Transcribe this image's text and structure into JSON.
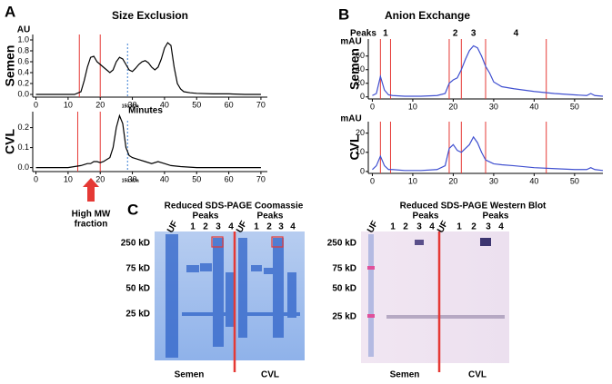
{
  "figure": {
    "panel_labels": [
      "A",
      "B",
      "C"
    ],
    "arrow_label": [
      "High MW",
      "fraction"
    ]
  },
  "chart_data": [
    {
      "type": "line",
      "title": "Size Exclusion",
      "row_label": "Semen",
      "unit_label": "AU",
      "xlabel": "Minutes",
      "annotation": "150 kDa",
      "color": "#000000",
      "x": [
        0,
        5,
        10,
        12,
        14,
        15,
        16,
        17,
        18,
        19,
        20,
        21,
        22,
        23,
        24,
        25,
        26,
        27,
        28,
        29,
        30,
        31,
        32,
        33,
        34,
        35,
        36,
        37,
        38,
        39,
        40,
        41,
        42,
        43,
        44,
        45,
        46,
        48,
        50,
        55,
        60,
        65,
        70
      ],
      "values": [
        0,
        0,
        0,
        0,
        0.05,
        0.25,
        0.5,
        0.68,
        0.7,
        0.6,
        0.55,
        0.5,
        0.45,
        0.4,
        0.45,
        0.6,
        0.68,
        0.65,
        0.55,
        0.45,
        0.42,
        0.48,
        0.55,
        0.6,
        0.62,
        0.58,
        0.5,
        0.45,
        0.5,
        0.65,
        0.85,
        0.95,
        0.9,
        0.5,
        0.2,
        0.1,
        0.05,
        0.03,
        0.02,
        0.01,
        0.01,
        0,
        0
      ],
      "xlim": [
        -1,
        72
      ],
      "ylim": [
        -0.05,
        1.1
      ],
      "xticks": [
        0,
        10,
        20,
        30,
        40,
        50,
        60,
        70
      ],
      "yticks": [
        {
          "value": 0,
          "label": "0.0"
        },
        0.2,
        0.4,
        0.6,
        0.8,
        {
          "value": 1,
          "label": "1.0"
        }
      ],
      "vlines": [
        13.5,
        20
      ],
      "vline_color": "#e53935",
      "ref_line": 28.5,
      "ref_color": "#3b7fd4"
    },
    {
      "type": "line",
      "row_label": "CVL",
      "annotation": "150 kDa",
      "color": "#000000",
      "x": [
        0,
        5,
        10,
        14,
        16,
        17,
        18,
        19,
        20,
        21,
        22,
        23,
        24,
        25,
        26,
        27,
        28,
        29,
        30,
        32,
        34,
        36,
        38,
        40,
        42,
        45,
        50,
        60,
        70
      ],
      "values": [
        0,
        0,
        0,
        0.01,
        0.02,
        0.02,
        0.03,
        0.03,
        0.025,
        0.03,
        0.04,
        0.05,
        0.1,
        0.2,
        0.26,
        0.22,
        0.1,
        0.06,
        0.05,
        0.04,
        0.03,
        0.02,
        0.03,
        0.02,
        0.01,
        0.005,
        0,
        0,
        0
      ],
      "xlim": [
        -1,
        72
      ],
      "ylim": [
        -0.02,
        0.28
      ],
      "xticks": [
        0,
        10,
        20,
        30,
        40,
        50,
        60,
        70
      ],
      "yticks": [
        {
          "value": 0,
          "label": "0.0"
        },
        0.1,
        0.2
      ],
      "vlines": [
        13,
        20
      ],
      "vline_color": "#e53935",
      "ref_line": 28.5,
      "ref_color": "#3b7fd4"
    },
    {
      "type": "line",
      "title": "Anion Exchange",
      "row_label": "Semen",
      "unit_label": "mAU",
      "color": "#4050d0",
      "peaks": {
        "title": "Peaks",
        "labels": [
          "1",
          "2",
          "3",
          "4"
        ]
      },
      "x": [
        0,
        1,
        2,
        3,
        4,
        5,
        8,
        12,
        16,
        18,
        19,
        20,
        21,
        22,
        23,
        24,
        25,
        26,
        27,
        28,
        29,
        30,
        32,
        35,
        40,
        45,
        50,
        53,
        54,
        55,
        57
      ],
      "values": [
        2,
        5,
        30,
        10,
        3,
        2,
        1,
        1,
        2,
        5,
        20,
        25,
        28,
        40,
        55,
        68,
        75,
        72,
        60,
        45,
        35,
        22,
        15,
        12,
        8,
        5,
        3,
        2,
        5,
        2,
        1
      ],
      "xlim": [
        -1,
        57
      ],
      "ylim": [
        -3,
        85
      ],
      "xticks": [
        0,
        10,
        20,
        30,
        40,
        50
      ],
      "yticks": [
        0,
        20,
        40,
        60
      ],
      "vlines": [
        2,
        4.5,
        19,
        22,
        28,
        43
      ],
      "vline_color": "#e53935"
    },
    {
      "type": "line",
      "row_label": "CVL",
      "unit_label": "mAU",
      "color": "#4050d0",
      "x": [
        0,
        1,
        2,
        3,
        4,
        5,
        8,
        12,
        16,
        18,
        19,
        20,
        21,
        22,
        23,
        24,
        25,
        26,
        27,
        28,
        29,
        30,
        32,
        35,
        40,
        45,
        50,
        53,
        54,
        55,
        57
      ],
      "values": [
        1,
        3,
        8,
        3,
        1,
        1,
        0.5,
        0.5,
        1,
        3,
        12,
        14,
        11,
        10,
        12,
        14,
        18,
        15,
        10,
        6,
        5,
        4,
        3.5,
        3,
        2,
        1.5,
        1,
        1,
        2,
        1,
        0.5
      ],
      "xlim": [
        -1,
        57
      ],
      "ylim": [
        -1,
        26
      ],
      "xticks": [
        0,
        10,
        20,
        30,
        40,
        50
      ],
      "yticks": [
        0,
        10,
        20
      ],
      "vlines": [
        2,
        4.5,
        19,
        22,
        28,
        43
      ],
      "vline_color": "#e53935"
    }
  ],
  "gels": [
    {
      "title": "Reduced SDS-PAGE Coomassie",
      "peaks_labels": [
        "Peaks",
        "Peaks"
      ],
      "lanes": [
        "UF",
        "1",
        "2",
        "3",
        "4",
        "UF",
        "1",
        "2",
        "3",
        "4"
      ],
      "markers": [
        "250 kD",
        "75 kD",
        "50 kD",
        "25 kD"
      ],
      "samples": [
        "Semen",
        "CVL"
      ]
    },
    {
      "title": "Reduced SDS-PAGE Western Blot",
      "peaks_labels": [
        "Peaks",
        "Peaks"
      ],
      "lanes": [
        "UF",
        "1",
        "2",
        "3",
        "4",
        "UF",
        "1",
        "2",
        "3",
        "4"
      ],
      "markers": [
        "250 kD",
        "75 kD",
        "50 kD",
        "25 kD"
      ],
      "samples": [
        "Semen",
        "CVL"
      ]
    }
  ]
}
